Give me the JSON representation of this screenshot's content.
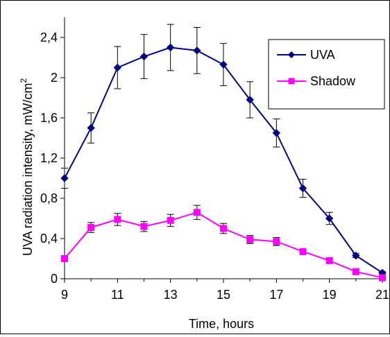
{
  "chart_data": {
    "type": "line",
    "xlabel": "Time, hours",
    "ylabel_main": "UVA radiation intensity, mW/cm",
    "ylabel_sup": "2",
    "xlim": [
      9,
      21
    ],
    "ylim": [
      0,
      2.6
    ],
    "x_ticks": [
      9,
      11,
      13,
      15,
      17,
      19,
      21
    ],
    "x_tick_labels": [
      "9",
      "11",
      "13",
      "15",
      "17",
      "19",
      "21"
    ],
    "y_ticks": [
      0,
      0.4,
      0.8,
      1.2,
      1.6,
      2,
      2.4
    ],
    "y_tick_labels": [
      "0",
      "0,4",
      "0,8",
      "1,2",
      "1,6",
      "2",
      "2,4"
    ],
    "grid": false,
    "legend_position": "top-right",
    "x": [
      9,
      10,
      11,
      12,
      13,
      14,
      15,
      16,
      17,
      18,
      19,
      20,
      21
    ],
    "series": [
      {
        "name": "UVA",
        "color": "#000080",
        "marker": "diamond",
        "values": [
          1.0,
          1.5,
          2.1,
          2.21,
          2.3,
          2.27,
          2.13,
          1.78,
          1.45,
          0.9,
          0.6,
          0.23,
          0.06
        ],
        "errors": [
          0.1,
          0.15,
          0.21,
          0.22,
          0.23,
          0.23,
          0.21,
          0.18,
          0.14,
          0.09,
          0.06,
          0.02,
          0.01
        ]
      },
      {
        "name": "Shadow",
        "color": "#ff00ff",
        "marker": "square",
        "values": [
          0.2,
          0.51,
          0.59,
          0.52,
          0.58,
          0.66,
          0.5,
          0.39,
          0.37,
          0.27,
          0.18,
          0.07,
          0.01
        ],
        "errors": [
          0.02,
          0.05,
          0.06,
          0.05,
          0.06,
          0.07,
          0.05,
          0.04,
          0.04,
          0.03,
          0.02,
          0.01,
          0.005
        ]
      }
    ]
  }
}
